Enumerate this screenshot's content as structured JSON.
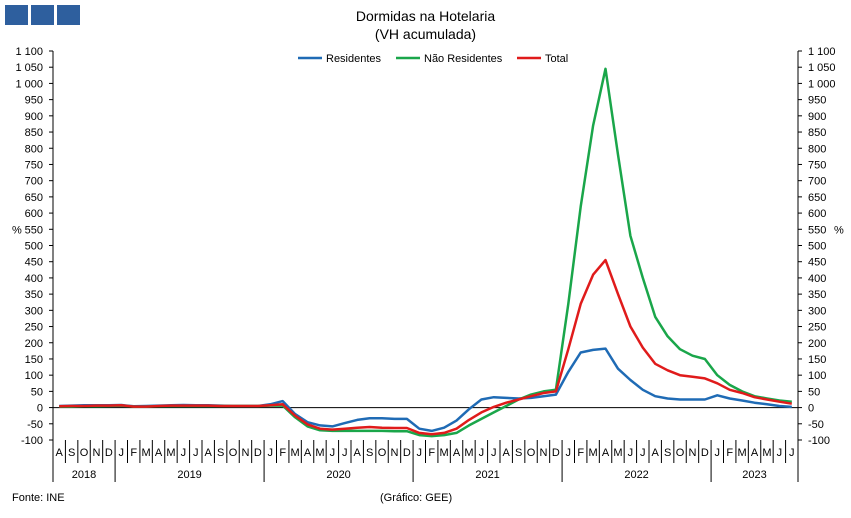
{
  "header": {
    "title": "Dormidas na Hotelaria",
    "subtitle": "(VH acumulada)"
  },
  "footer": {
    "source": "Fonte: INE",
    "credit": "(Gráfico: GEE)"
  },
  "colors": {
    "logo": "#2e5f9e",
    "Residentes": "#1f6bb5",
    "Não Residentes": "#1aa64a",
    "Total": "#e01b1b",
    "grid": "#000000"
  },
  "chart_data": {
    "type": "line",
    "title": "Dormidas na Hotelaria",
    "subtitle": "(VH acumulada)",
    "yunit_left": "%",
    "yunit_right": "%",
    "ylim": [
      -100,
      1100
    ],
    "ytick_labels": [
      "-100",
      "-50",
      "0",
      "50",
      "100",
      "150",
      "200",
      "250",
      "300",
      "350",
      "400",
      "450",
      "500",
      "550",
      "600",
      "650",
      "700",
      "750",
      "800",
      "850",
      "900",
      "950",
      "1 000",
      "1 050",
      "1 100"
    ],
    "legend_position": "top-center",
    "grid": false,
    "x_month_labels": [
      "A",
      "S",
      "O",
      "N",
      "D",
      "J",
      "F",
      "M",
      "A",
      "M",
      "J",
      "J",
      "A",
      "S",
      "O",
      "N",
      "D",
      "J",
      "F",
      "M",
      "A",
      "M",
      "J",
      "J",
      "A",
      "S",
      "O",
      "N",
      "D",
      "J",
      "F",
      "M",
      "A",
      "M",
      "J",
      "J",
      "A",
      "S",
      "O",
      "N",
      "D",
      "J",
      "F",
      "M",
      "A",
      "M",
      "J",
      "J",
      "A",
      "S",
      "O",
      "N",
      "D",
      "J",
      "F",
      "M",
      "A",
      "M",
      "J",
      "J"
    ],
    "x_year_groups": [
      {
        "label": "2018",
        "count": 5
      },
      {
        "label": "2019",
        "count": 12
      },
      {
        "label": "2020",
        "count": 12
      },
      {
        "label": "2021",
        "count": 12
      },
      {
        "label": "2022",
        "count": 12
      },
      {
        "label": "2023",
        "count": 7
      }
    ],
    "series": [
      {
        "name": "Residentes",
        "values": [
          5,
          6,
          7,
          7,
          7,
          8,
          4,
          5,
          6,
          7,
          8,
          7,
          7,
          6,
          5,
          5,
          5,
          10,
          20,
          -20,
          -45,
          -55,
          -58,
          -48,
          -38,
          -33,
          -33,
          -35,
          -35,
          -65,
          -72,
          -62,
          -40,
          -5,
          25,
          32,
          30,
          28,
          30,
          35,
          40,
          110,
          170,
          178,
          182,
          120,
          85,
          55,
          35,
          28,
          25,
          25,
          25,
          38,
          28,
          22,
          15,
          10,
          5,
          2
        ]
      },
      {
        "name": "Não Residentes",
        "values": [
          3,
          3,
          4,
          4,
          5,
          6,
          3,
          3,
          4,
          5,
          5,
          5,
          5,
          5,
          5,
          5,
          5,
          6,
          6,
          -30,
          -58,
          -70,
          -72,
          -72,
          -72,
          -72,
          -72,
          -73,
          -73,
          -85,
          -88,
          -85,
          -78,
          -55,
          -35,
          -15,
          5,
          25,
          40,
          50,
          55,
          320,
          620,
          870,
          1045,
          780,
          530,
          400,
          280,
          220,
          180,
          160,
          150,
          100,
          70,
          50,
          35,
          28,
          22,
          18
        ]
      },
      {
        "name": "Total",
        "values": [
          4,
          5,
          5,
          6,
          6,
          7,
          3,
          3,
          5,
          6,
          6,
          6,
          6,
          5,
          5,
          5,
          5,
          7,
          10,
          -25,
          -52,
          -65,
          -68,
          -65,
          -62,
          -60,
          -62,
          -63,
          -63,
          -78,
          -82,
          -78,
          -65,
          -38,
          -15,
          2,
          15,
          25,
          35,
          45,
          50,
          180,
          320,
          410,
          455,
          350,
          250,
          185,
          135,
          115,
          100,
          95,
          90,
          75,
          55,
          45,
          32,
          25,
          18,
          12
        ]
      }
    ]
  }
}
